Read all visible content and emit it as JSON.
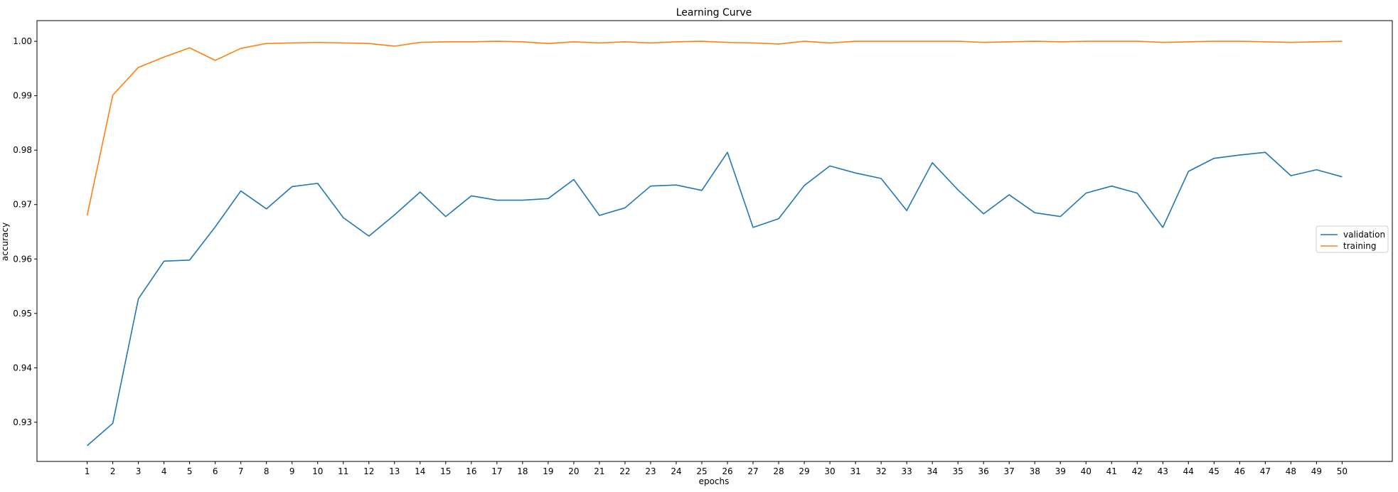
{
  "chart_data": {
    "type": "line",
    "title": "Learning Curve",
    "xlabel": "epochs",
    "ylabel": "accuracy",
    "xlim": [
      -0.96,
      51.96
    ],
    "ylim": [
      0.9228,
      1.0038
    ],
    "x_ticks": [
      1,
      2,
      3,
      4,
      5,
      6,
      7,
      8,
      9,
      10,
      11,
      12,
      13,
      14,
      15,
      16,
      17,
      18,
      19,
      20,
      21,
      22,
      23,
      24,
      25,
      26,
      27,
      28,
      29,
      30,
      31,
      32,
      33,
      34,
      35,
      36,
      37,
      38,
      39,
      40,
      41,
      42,
      43,
      44,
      45,
      46,
      47,
      48,
      49,
      50
    ],
    "y_ticks": [
      0.93,
      0.94,
      0.95,
      0.96,
      0.97,
      0.98,
      0.99,
      1.0
    ],
    "y_tick_labels": [
      "0.93",
      "0.94",
      "0.95",
      "0.96",
      "0.97",
      "0.98",
      "0.99",
      "1.00"
    ],
    "grid": false,
    "legend_position": "center-right",
    "x": [
      1,
      2,
      3,
      4,
      5,
      6,
      7,
      8,
      9,
      10,
      11,
      12,
      13,
      14,
      15,
      16,
      17,
      18,
      19,
      20,
      21,
      22,
      23,
      24,
      25,
      26,
      27,
      28,
      29,
      30,
      31,
      32,
      33,
      34,
      35,
      36,
      37,
      38,
      39,
      40,
      41,
      42,
      43,
      44,
      45,
      46,
      47,
      48,
      49,
      50
    ],
    "series": [
      {
        "name": "validation",
        "color": "#1f77b4",
        "values": [
          0.9257,
          0.9298,
          0.9527,
          0.9596,
          0.9598,
          0.9659,
          0.9725,
          0.9692,
          0.9733,
          0.9739,
          0.9676,
          0.9642,
          0.9681,
          0.9723,
          0.9678,
          0.9716,
          0.9708,
          0.9708,
          0.9711,
          0.9746,
          0.968,
          0.9694,
          0.9734,
          0.9736,
          0.9726,
          0.9796,
          0.9658,
          0.9674,
          0.9735,
          0.9771,
          0.9758,
          0.9748,
          0.9689,
          0.9777,
          0.9727,
          0.9683,
          0.9718,
          0.9685,
          0.9678,
          0.9721,
          0.9734,
          0.9721,
          0.9658,
          0.9761,
          0.9785,
          0.9791,
          0.9796,
          0.9753,
          0.9764,
          0.9751
        ]
      },
      {
        "name": "training",
        "color": "#ff7f0e",
        "values": [
          0.968,
          0.9901,
          0.9952,
          0.9971,
          0.9988,
          0.9965,
          0.9987,
          0.9996,
          0.9997,
          0.9998,
          0.9997,
          0.9996,
          0.9991,
          0.9998,
          0.9999,
          0.9999,
          1.0,
          0.9999,
          0.9996,
          0.9999,
          0.9997,
          0.9999,
          0.9997,
          0.9999,
          1.0,
          0.9998,
          0.9997,
          0.9995,
          1.0,
          0.9997,
          1.0,
          1.0,
          1.0,
          1.0,
          1.0,
          0.9998,
          0.9999,
          1.0,
          0.9999,
          1.0,
          1.0,
          1.0,
          0.9998,
          0.9999,
          1.0,
          1.0,
          0.9999,
          0.9998,
          0.9999,
          1.0
        ]
      }
    ]
  }
}
